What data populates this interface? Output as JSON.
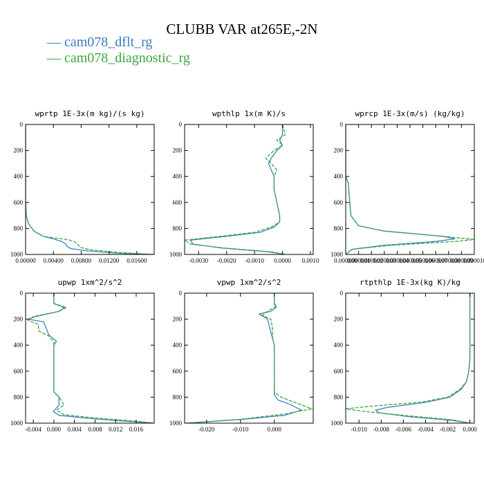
{
  "title": "CLUBB VAR at265E,-2N",
  "legend": [
    {
      "label": "— cam078_dflt_rg",
      "color": "#3a7dbf"
    },
    {
      "label": "— cam078_diagnostic_rg",
      "color": "#3ea63e"
    }
  ],
  "chart_data": [
    {
      "type": "line",
      "title": "wprtp  1E-3x(m kg)/(s kg)",
      "xlim": [
        0,
        0.0185
      ],
      "ylim": [
        1000,
        0
      ],
      "xticks": [
        0,
        0.004,
        0.008,
        0.012,
        0.016
      ],
      "xtick_labels": [
        "0.00000",
        "0.00400",
        "0.00800",
        "0.01200",
        "0.01600"
      ],
      "yticks": [
        0,
        200,
        400,
        600,
        800,
        1000
      ],
      "series": [
        {
          "color": "#3a7dbf",
          "x": [
            0,
            0,
            0.0001,
            0.0004,
            0.0012,
            0.0025,
            0.004,
            0.0052,
            0.0058,
            0.006,
            0.0065,
            0.0085,
            0.013,
            0.0185
          ],
          "y": [
            0,
            600,
            700,
            760,
            820,
            860,
            880,
            900,
            920,
            940,
            955,
            970,
            990,
            1000
          ]
        },
        {
          "color": "#3ea63e",
          "x": [
            0,
            0,
            0.0001,
            0.0004,
            0.0012,
            0.0025,
            0.0045,
            0.006,
            0.007,
            0.0075,
            0.0078,
            0.0095,
            0.0135,
            0.0185
          ],
          "y": [
            0,
            600,
            700,
            760,
            820,
            860,
            875,
            885,
            900,
            920,
            945,
            965,
            985,
            1000
          ]
        }
      ]
    },
    {
      "type": "line",
      "title": "wpthlp  1x(m K)/s",
      "xlim": [
        -0.0035,
        0.0011
      ],
      "ylim": [
        1000,
        0
      ],
      "xticks": [
        -0.003,
        -0.002,
        -0.001,
        0,
        0.001
      ],
      "xtick_labels": [
        "-0.0030",
        "-0.0020",
        "-0.0010",
        "0.0000",
        "0.0010"
      ],
      "yticks": [
        0,
        200,
        400,
        600,
        800,
        1000
      ],
      "series": [
        {
          "color": "#3a7dbf",
          "x": [
            0,
            0,
            -0.0001,
            0,
            -0.0002,
            -0.0004,
            -0.0005,
            -0.0004,
            -0.0003,
            -0.0003,
            -0.0002,
            -0.0001,
            -0.0001,
            -0.0003,
            -0.0008,
            -0.002,
            -0.0033,
            -0.0032,
            -0.0022,
            -0.0005,
            0.0001
          ],
          "y": [
            0,
            80,
            120,
            160,
            200,
            260,
            300,
            350,
            400,
            500,
            600,
            700,
            750,
            790,
            830,
            860,
            890,
            920,
            950,
            980,
            1000
          ]
        },
        {
          "color": "#3ea63e",
          "x": [
            0,
            0.0001,
            -0.0002,
            0,
            -0.0003,
            -0.0006,
            -0.0004,
            -0.0002,
            -0.0003,
            -0.0003,
            -0.0002,
            -0.0001,
            -0.0001,
            -0.0004,
            -0.001,
            -0.0022,
            -0.0035,
            -0.0033,
            -0.0021,
            -0.0004,
            0.0001
          ],
          "y": [
            0,
            80,
            120,
            160,
            200,
            260,
            300,
            350,
            400,
            500,
            600,
            700,
            750,
            790,
            830,
            860,
            890,
            920,
            950,
            980,
            1000
          ]
        }
      ]
    },
    {
      "type": "line",
      "title": "wprcp  1E-3x(m/s) (kg/kg)",
      "xlim": [
        0,
        1e-05
      ],
      "ylim": [
        1000,
        0
      ],
      "xticks": [
        0,
        1e-06,
        2e-06,
        3e-06,
        4e-06,
        5e-06,
        6e-06,
        7e-06,
        8e-06,
        9e-06,
        1e-05
      ],
      "xtick_labels": [
        "0.000000",
        "0.000001",
        "0.000002",
        "0.000003",
        "0.000004",
        "0.000005",
        "0.000006",
        "0.000007",
        "0.000008",
        "0.000009",
        "0.000010"
      ],
      "yticks": [
        0,
        200,
        400,
        600,
        800,
        1000
      ],
      "series": [
        {
          "color": "#3a7dbf",
          "x": [
            0,
            0,
            2e-07,
            4e-07,
            1e-06,
            3e-06,
            7.5e-06,
            8.5e-06,
            7e-06,
            3e-06,
            5e-07,
            0
          ],
          "y": [
            0,
            400,
            450,
            700,
            780,
            820,
            860,
            880,
            900,
            930,
            960,
            1000
          ]
        },
        {
          "color": "#3ea63e",
          "x": [
            0,
            0,
            2e-07,
            4e-07,
            1e-06,
            3e-06,
            7.5e-06,
            1e-05,
            8.5e-06,
            3.5e-06,
            5e-07,
            0
          ],
          "y": [
            0,
            400,
            450,
            700,
            780,
            820,
            860,
            885,
            900,
            930,
            960,
            1000
          ]
        }
      ]
    },
    {
      "type": "line",
      "title": "upwp  1xm^2/s^2",
      "xlim": [
        -0.0055,
        0.0195
      ],
      "ylim": [
        1000,
        0
      ],
      "xticks": [
        -0.004,
        0,
        0.004,
        0.008,
        0.012,
        0.016
      ],
      "xtick_labels": [
        "-0.004",
        "0.000",
        "0.004",
        "0.008",
        "0.012",
        "0.016"
      ],
      "yticks": [
        0,
        200,
        400,
        600,
        800,
        1000
      ],
      "series": [
        {
          "color": "#3a7dbf",
          "x": [
            0,
            0,
            0.002,
            0.001,
            -0.0035,
            -0.005,
            -0.002,
            -0.001,
            0.0005,
            0,
            0,
            0,
            0.001,
            0.001,
            -0.0001,
            0.001,
            0.006,
            0.014,
            0.0195
          ],
          "y": [
            0,
            80,
            110,
            140,
            180,
            200,
            220,
            320,
            370,
            400,
            600,
            760,
            800,
            860,
            910,
            940,
            960,
            985,
            1000
          ]
        },
        {
          "color": "#3ea63e",
          "x": [
            0,
            0,
            0.0025,
            0.001,
            -0.004,
            -0.005,
            -0.003,
            -0.003,
            -0.001,
            0,
            0,
            0,
            0.001,
            0.002,
            0.0005,
            0.002,
            0.008,
            0.016,
            0.0195
          ],
          "y": [
            0,
            80,
            110,
            140,
            180,
            210,
            240,
            290,
            330,
            380,
            600,
            760,
            800,
            860,
            900,
            935,
            960,
            985,
            1000
          ]
        }
      ]
    },
    {
      "type": "line",
      "title": "vpwp  1xm^2/s^2",
      "xlim": [
        -0.0265,
        0.0115
      ],
      "ylim": [
        1000,
        0
      ],
      "xticks": [
        -0.02,
        -0.01,
        0
      ],
      "xtick_labels": [
        "-0.020",
        "-0.010",
        "0.000"
      ],
      "yticks": [
        0,
        200,
        400,
        600,
        800,
        1000
      ],
      "series": [
        {
          "color": "#3a7dbf",
          "x": [
            0,
            0,
            0.0005,
            -0.001,
            -0.0045,
            -0.002,
            -0.001,
            -0.0005,
            0,
            0,
            0.001,
            0.005,
            0.008,
            0.003,
            -0.009,
            -0.026
          ],
          "y": [
            0,
            80,
            110,
            140,
            160,
            200,
            300,
            350,
            400,
            780,
            820,
            860,
            900,
            940,
            970,
            1000
          ]
        },
        {
          "color": "#3ea63e",
          "x": [
            0,
            0,
            0.0008,
            -0.0015,
            -0.0035,
            -0.001,
            -0.0005,
            -0.0005,
            0,
            0,
            0.002,
            0.008,
            0.011,
            0.003,
            -0.01,
            -0.026
          ],
          "y": [
            0,
            80,
            100,
            130,
            170,
            200,
            280,
            350,
            400,
            760,
            800,
            860,
            890,
            930,
            970,
            1000
          ]
        }
      ]
    },
    {
      "type": "line",
      "title": "rtpthlp  1E-3x(kg K)/kg",
      "xlim": [
        -0.0112,
        0.0004
      ],
      "ylim": [
        1000,
        0
      ],
      "xticks": [
        -0.01,
        -0.008,
        -0.006,
        -0.004,
        -0.002,
        0
      ],
      "xtick_labels": [
        "-0.010",
        "-0.008",
        "-0.006",
        "-0.004",
        "-0.002",
        "0.000"
      ],
      "yticks": [
        0,
        200,
        400,
        600,
        800,
        1000
      ],
      "series": [
        {
          "color": "#3a7dbf",
          "x": [
            0,
            0,
            -0.0001,
            -0.0003,
            -0.0008,
            -0.0018,
            -0.004,
            -0.0075,
            -0.0085,
            -0.0082,
            -0.0055,
            -0.0015,
            0
          ],
          "y": [
            0,
            500,
            600,
            680,
            740,
            800,
            840,
            880,
            900,
            920,
            950,
            980,
            1000
          ]
        },
        {
          "color": "#3ea63e",
          "x": [
            0,
            0,
            -0.0001,
            -0.0003,
            -0.0009,
            -0.002,
            -0.0045,
            -0.009,
            -0.0112,
            -0.0095,
            -0.006,
            -0.0015,
            0
          ],
          "y": [
            0,
            500,
            600,
            680,
            740,
            800,
            840,
            870,
            890,
            910,
            940,
            975,
            1000
          ]
        }
      ]
    }
  ]
}
